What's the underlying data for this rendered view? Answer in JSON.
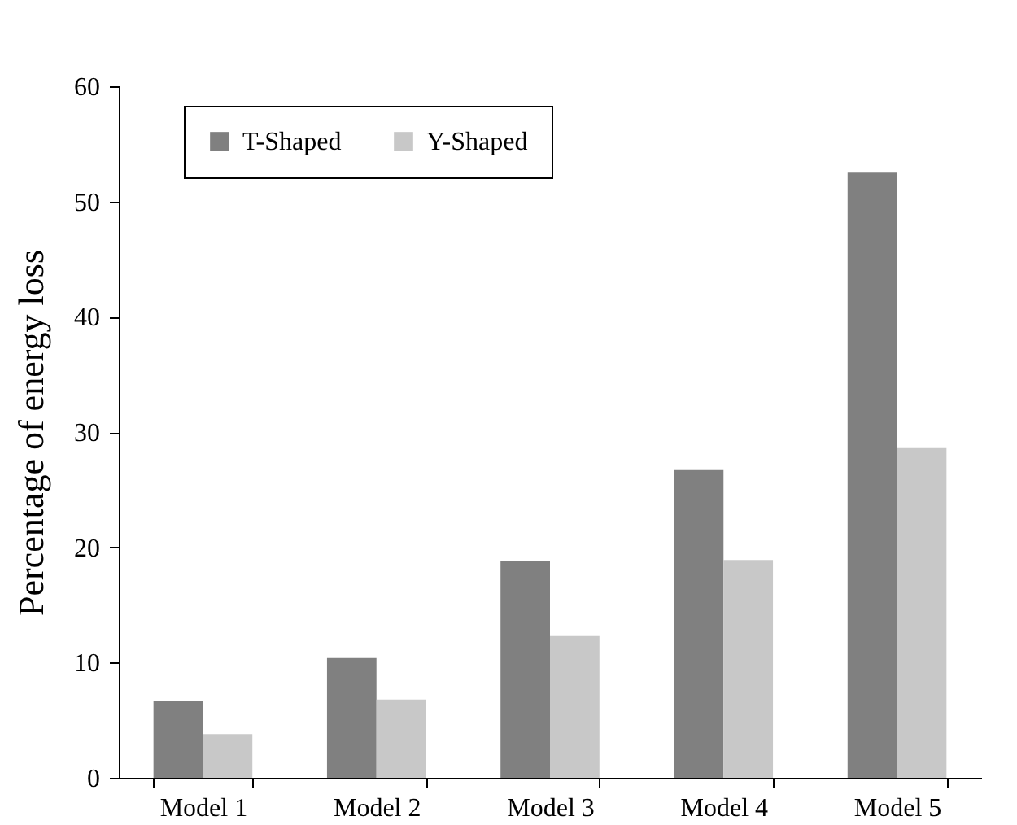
{
  "chart_data": {
    "type": "bar",
    "ylabel": "Percentage of energy loss",
    "categories": [
      "Model 1",
      "Model 2",
      "Model 3",
      "Model 4",
      "Model 5"
    ],
    "series": [
      {
        "name": "T-Shaped",
        "color": "#808080",
        "values": [
          6.7,
          10.4,
          18.8,
          26.7,
          52.5
        ]
      },
      {
        "name": "Y-Shaped",
        "color": "#c8c8c8",
        "values": [
          3.8,
          6.8,
          12.3,
          18.9,
          28.6
        ]
      }
    ],
    "ylim": [
      0,
      60
    ],
    "yticks": [
      0,
      10,
      20,
      30,
      40,
      50,
      60
    ],
    "grid": false,
    "legend": "top left"
  }
}
